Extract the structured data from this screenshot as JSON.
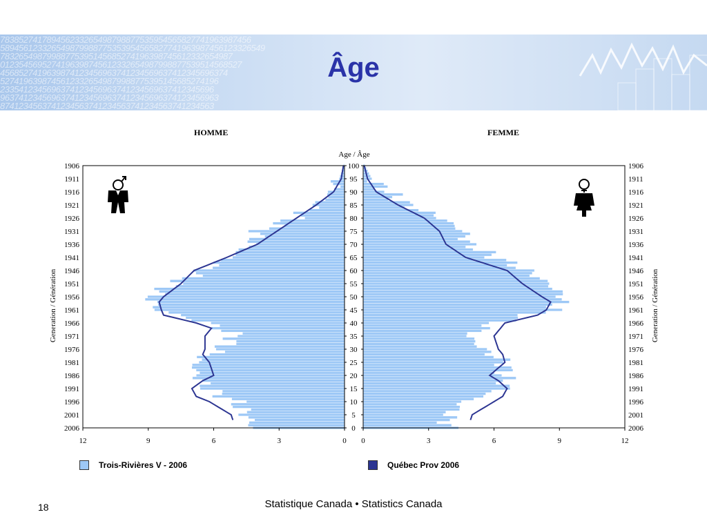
{
  "slide": {
    "title": "Âge",
    "footer": "Statistique Canada • Statistics Canada",
    "page_number": "18",
    "banner_digits": [
      "783852741789456233265498798877535954565827741963987456",
      "589456123326549879988775353954565827741963987456123326549",
      "78326549879988775395145685274196398745612332654987",
      "0123545695274196398745612332654987998877539514568527",
      "4568527419639874123456963741234569637412345696374",
      "52741963987456123326549879988775395145685274196",
      "2335412345696374123456963741234569637412345696",
      "96374123456963741234569637412345696374123456963",
      "8741234563741234563741234563741234563741234563"
    ]
  },
  "colors": {
    "bar_fill": "#9dc8f6",
    "bar_stroke": "#ffffff",
    "line": "#2c3592",
    "title": "#2a33a8"
  },
  "icons": {
    "male": "male-figure-icon",
    "female": "female-figure-icon"
  },
  "chart_data": {
    "type": "bar",
    "orientation": "horizontal-pyramid",
    "left_title": "HOMME",
    "right_title": "FEMME",
    "center_axis_title": "Age / Âge",
    "side_axis_title": "Generation / Génération",
    "age_range": [
      0,
      100
    ],
    "age_ticks": [
      100,
      95,
      90,
      85,
      80,
      75,
      70,
      65,
      60,
      55,
      50,
      45,
      40,
      35,
      30,
      25,
      20,
      15,
      10,
      5,
      0
    ],
    "generation_ticks": [
      "1906",
      "1911",
      "1916",
      "1921",
      "1926",
      "1931",
      "1936",
      "1941",
      "1946",
      "1951",
      "1956",
      "1961",
      "1966",
      "1971",
      "1976",
      "1981",
      "1986",
      "1991",
      "1996",
      "2001",
      "2006"
    ],
    "x_range": [
      0,
      12
    ],
    "left_x_ticks": [
      "12",
      "9",
      "6",
      "3",
      "0"
    ],
    "right_x_ticks": [
      "0",
      "3",
      "6",
      "9",
      "12"
    ],
    "legend": {
      "bars": "Trois-Rivières V - 2006",
      "line": "Québec Prov 2006"
    },
    "series": [
      {
        "name": "Trois-Rivières V - 2006",
        "kind": "bars",
        "key_ages": [
          0,
          5,
          10,
          15,
          20,
          25,
          30,
          35,
          40,
          45,
          50,
          55,
          60,
          65,
          70,
          75,
          80,
          85,
          90,
          95,
          100
        ],
        "male": [
          4.2,
          4.5,
          5.0,
          6.3,
          6.8,
          6.9,
          5.7,
          4.9,
          6.3,
          8.6,
          8.9,
          7.8,
          6.5,
          5.3,
          4.3,
          3.9,
          2.3,
          1.3,
          0.6,
          0.25,
          0.05
        ],
        "female": [
          3.9,
          3.9,
          4.6,
          6.5,
          6.5,
          6.5,
          5.5,
          4.8,
          6.0,
          8.7,
          9.2,
          8.5,
          7.5,
          6.1,
          4.8,
          4.6,
          3.6,
          2.0,
          1.1,
          0.4,
          0.08
        ]
      },
      {
        "name": "Québec Prov 2006",
        "kind": "line",
        "key_ages": [
          0,
          5,
          10,
          12,
          15,
          18,
          20,
          25,
          28,
          30,
          35,
          38,
          40,
          43,
          45,
          48,
          50,
          55,
          60,
          65,
          70,
          75,
          80,
          85,
          90,
          95,
          100
        ],
        "male": [
          5.0,
          5.2,
          6.2,
          6.8,
          7.0,
          6.5,
          6.0,
          6.2,
          6.5,
          6.4,
          6.4,
          6.1,
          6.8,
          8.3,
          8.4,
          8.5,
          8.3,
          7.5,
          6.9,
          5.4,
          4.0,
          3.1,
          2.2,
          1.3,
          0.5,
          0.15,
          0.05
        ],
        "female": [
          4.8,
          5.0,
          6.0,
          6.4,
          6.6,
          6.2,
          5.8,
          6.5,
          6.4,
          6.2,
          6.0,
          6.3,
          6.5,
          8.0,
          8.4,
          8.6,
          8.2,
          7.3,
          6.6,
          4.7,
          3.8,
          3.5,
          2.8,
          1.6,
          0.6,
          0.2,
          0.05
        ]
      }
    ]
  }
}
